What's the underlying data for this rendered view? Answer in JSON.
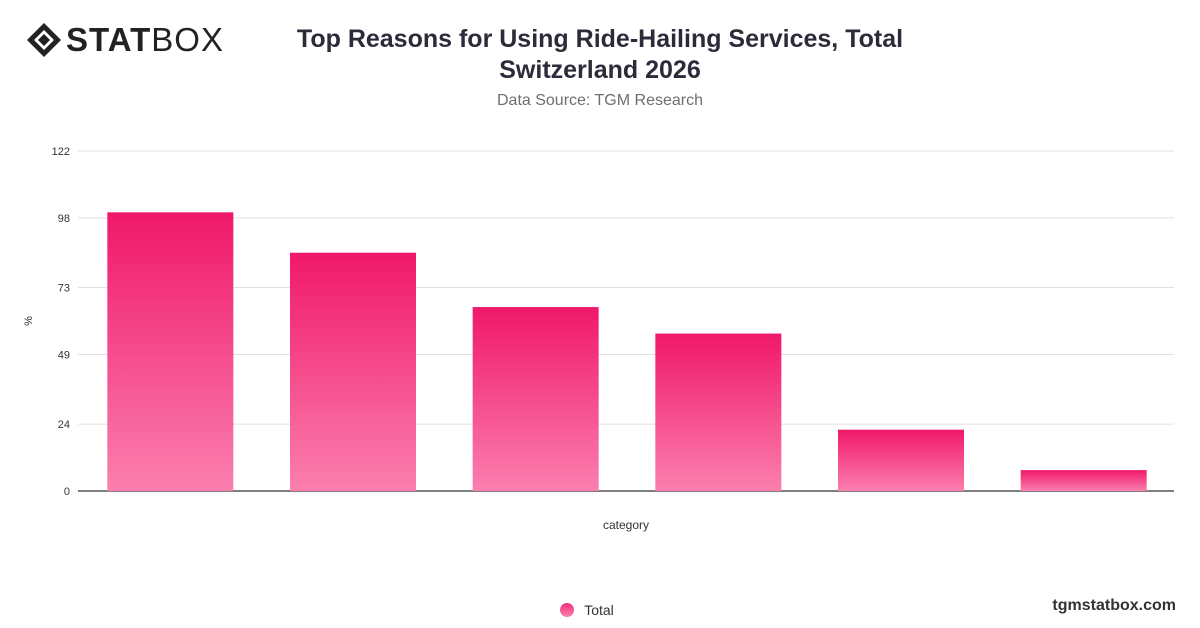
{
  "brand": {
    "stat": "STAT",
    "box": "BOX",
    "logo_icon": "diamond-logo-icon"
  },
  "header": {
    "title_line1": "Top Reasons for Using Ride-Hailing Services, Total",
    "title_line2": "Switzerland 2026",
    "subtitle": "Data Source: TGM Research"
  },
  "footer": {
    "site": "tgmstatbox.com"
  },
  "colors": {
    "bar_top": "#f0186a",
    "bar_bottom": "#fb7fae",
    "grid": "#e0e0e0",
    "axis": "#333333"
  },
  "chart_data": {
    "type": "bar",
    "title": "Top Reasons for Using Ride-Hailing Services, Total Switzerland 2026",
    "xlabel": "category",
    "ylabel": "%",
    "ylim": [
      0,
      122
    ],
    "yticks": [
      0,
      24,
      49,
      73,
      98,
      122
    ],
    "grid": true,
    "legend_position": "bottom",
    "categories": [
      "",
      "",
      "",
      "",
      "",
      ""
    ],
    "series": [
      {
        "name": "Total",
        "values": [
          100,
          85.5,
          66,
          56.5,
          22,
          7.5
        ]
      }
    ]
  }
}
